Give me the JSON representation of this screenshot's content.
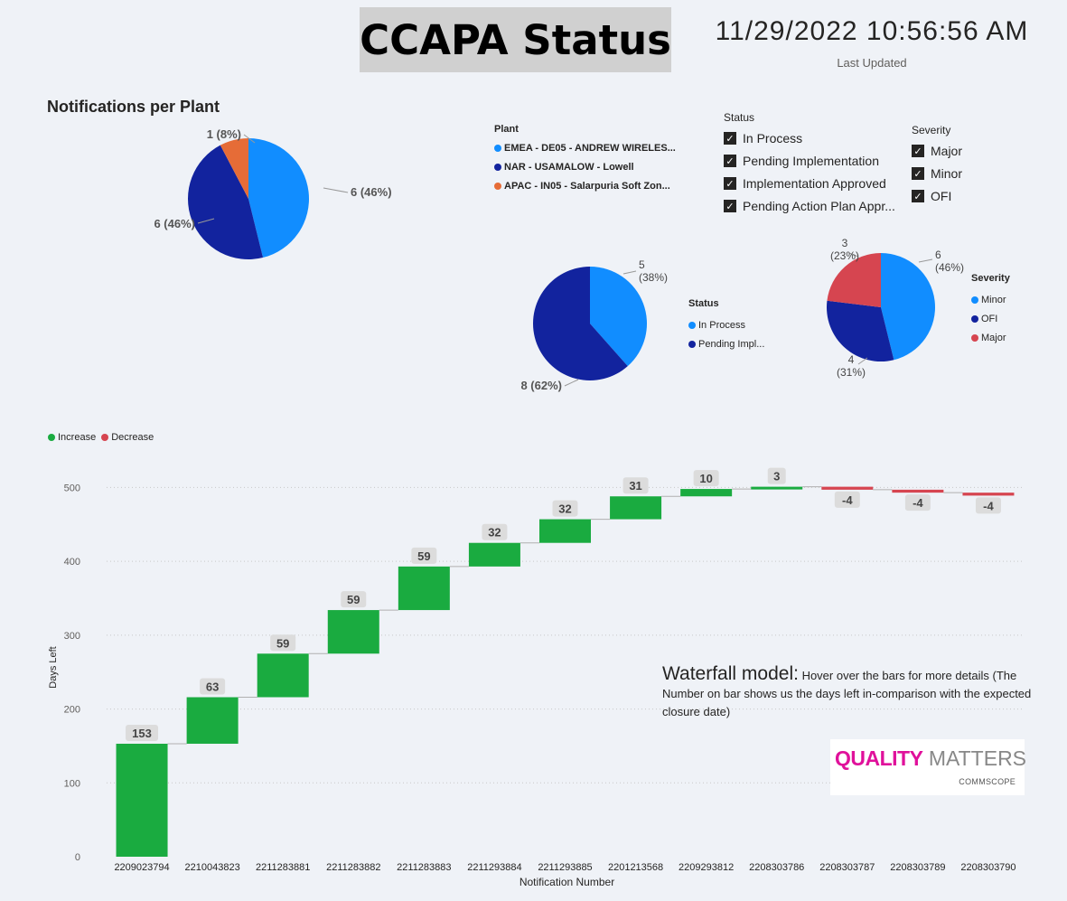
{
  "header": {
    "title": "CCAPA Status",
    "timestamp": "11/29/2022 10:56:56 AM",
    "timestamp_caption": "Last Updated"
  },
  "note": {
    "heading": "Waterfall model:",
    "text": "Hover over the bars for more details (The Number on bar shows us the days left in-comparison with the expected closure date)"
  },
  "logo": {
    "brand_bold": "QUALITY",
    "brand_light": "MATTERS",
    "company": "COMMSCOPE"
  },
  "slicers": {
    "status": {
      "title": "Status",
      "items": [
        "In Process",
        "Pending Implementation",
        "Implementation Approved",
        "Pending Action Plan Appr..."
      ]
    },
    "severity": {
      "title": "Severity",
      "items": [
        "Major",
        "Minor",
        "OFI"
      ]
    }
  },
  "colors": {
    "light_blue": "#118dff",
    "dark_blue": "#12239e",
    "orange": "#e66c37",
    "red": "#d64550",
    "increase": "#1aab40",
    "decrease": "#d64550"
  },
  "chart_data": [
    {
      "type": "pie",
      "title": "Notifications per Plant",
      "legend_title": "Plant",
      "slices": [
        {
          "label": "EMEA - DE05 - ANDREW WIRELES...",
          "value": 6,
          "data_label": "6 (46%)",
          "color": "#118dff"
        },
        {
          "label": "NAR - USAMALOW - Lowell",
          "value": 6,
          "data_label": "6 (46%)",
          "color": "#12239e"
        },
        {
          "label": "APAC - IN05 - Salarpuria Soft Zon...",
          "value": 1,
          "data_label": "1 (8%)",
          "color": "#e66c37"
        }
      ]
    },
    {
      "type": "pie",
      "title": "",
      "legend_title": "Status",
      "slices": [
        {
          "label": "In Process",
          "value": 5,
          "data_label": "5 (38%)",
          "color": "#118dff"
        },
        {
          "label": "Pending Impl...",
          "value": 8,
          "data_label": "8 (62%)",
          "color": "#12239e"
        }
      ]
    },
    {
      "type": "pie",
      "title": "",
      "legend_title": "Severity",
      "slices": [
        {
          "label": "Minor",
          "value": 6,
          "data_label": "6 (46%)",
          "color": "#118dff"
        },
        {
          "label": "OFI",
          "value": 4,
          "data_label": "4 (31%)",
          "color": "#12239e"
        },
        {
          "label": "Major",
          "value": 3,
          "data_label": "3 (23%)",
          "color": "#d64550"
        }
      ]
    },
    {
      "type": "bar",
      "subtype": "waterfall",
      "xlabel": "Notification Number",
      "ylabel": "Days Left",
      "ylim": [
        0,
        525
      ],
      "yticks": [
        0,
        100,
        200,
        300,
        400,
        500
      ],
      "grid": true,
      "legend": [
        {
          "label": "Increase",
          "color": "#1aab40"
        },
        {
          "label": "Decrease",
          "color": "#d64550"
        }
      ],
      "legend_position": "top-left",
      "categories": [
        "2209023794",
        "2210043823",
        "2211283881",
        "2211283882",
        "2211283883",
        "2211293884",
        "2211293885",
        "2201213568",
        "2209293812",
        "2208303786",
        "2208303787",
        "2208303789",
        "2208303790"
      ],
      "values": [
        153,
        63,
        59,
        59,
        59,
        32,
        32,
        31,
        10,
        3,
        -4,
        -4,
        -4
      ]
    }
  ]
}
